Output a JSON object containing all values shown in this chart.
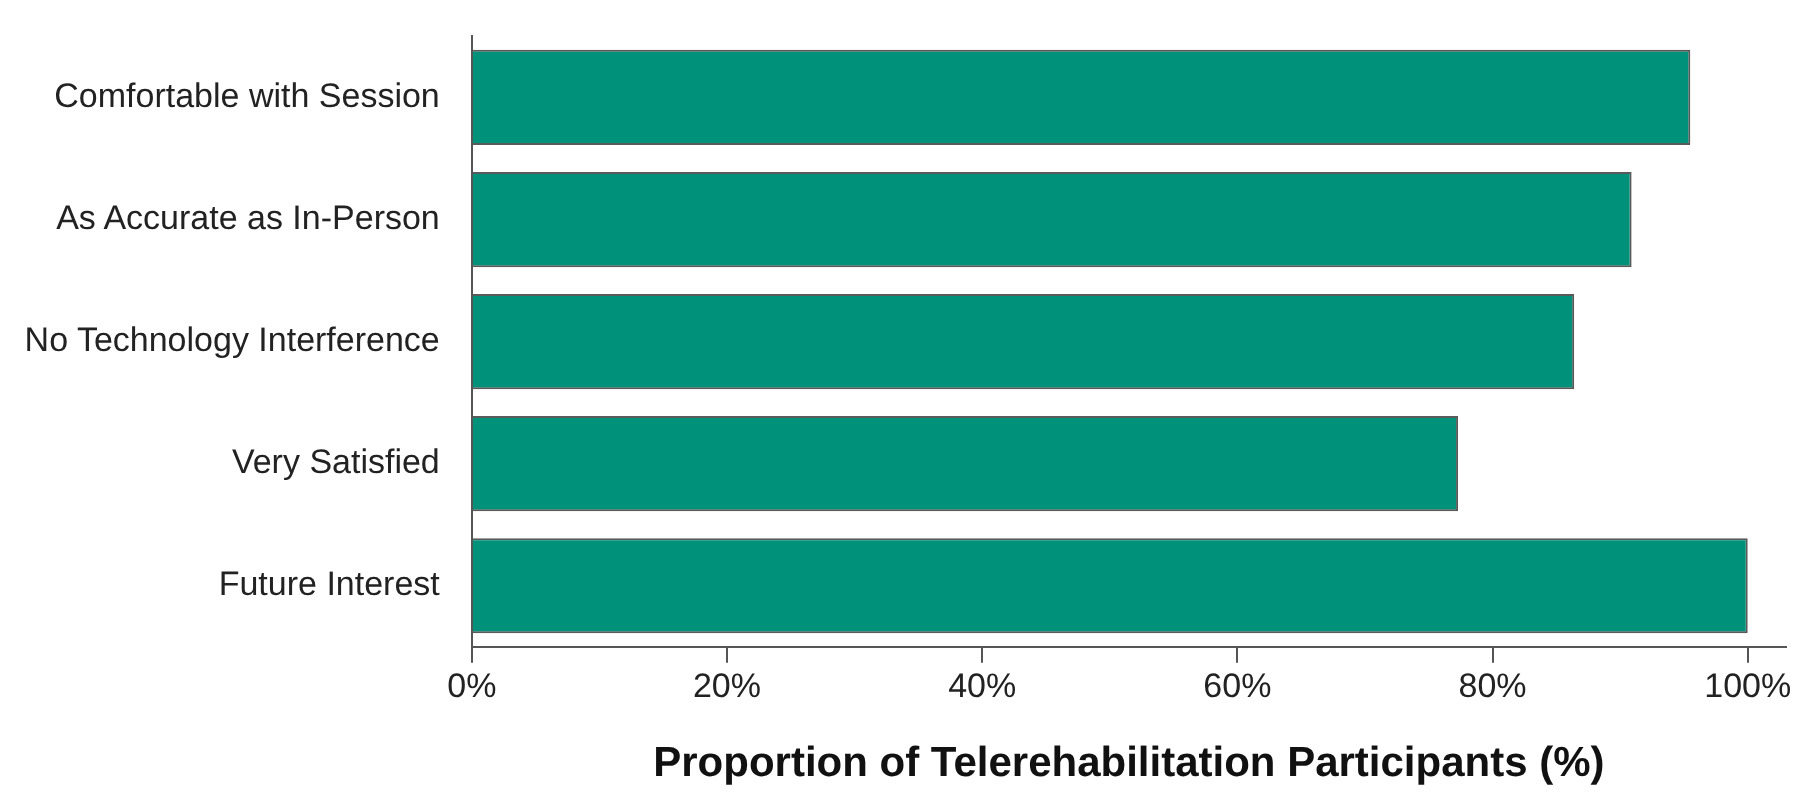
{
  "chart_data": {
    "type": "bar",
    "orientation": "horizontal",
    "xlabel": "Proportion of Telerehabilitation Participants (%)",
    "categories": [
      "Comfortable with Session",
      "As Accurate as In-Person",
      "No Technology Interference",
      "Very Satisfied",
      "Future Interest"
    ],
    "values": [
      95.5,
      90.9,
      86.4,
      77.3,
      100
    ],
    "color": "#00917a",
    "xlim": [
      0,
      103
    ],
    "xticks": [
      {
        "value": 0,
        "label": "0%"
      },
      {
        "value": 20,
        "label": "20%"
      },
      {
        "value": 40,
        "label": "40%"
      },
      {
        "value": 60,
        "label": "60%"
      },
      {
        "value": 80,
        "label": "80%"
      },
      {
        "value": 100,
        "label": "100%"
      }
    ],
    "grid": false,
    "legend": false
  }
}
